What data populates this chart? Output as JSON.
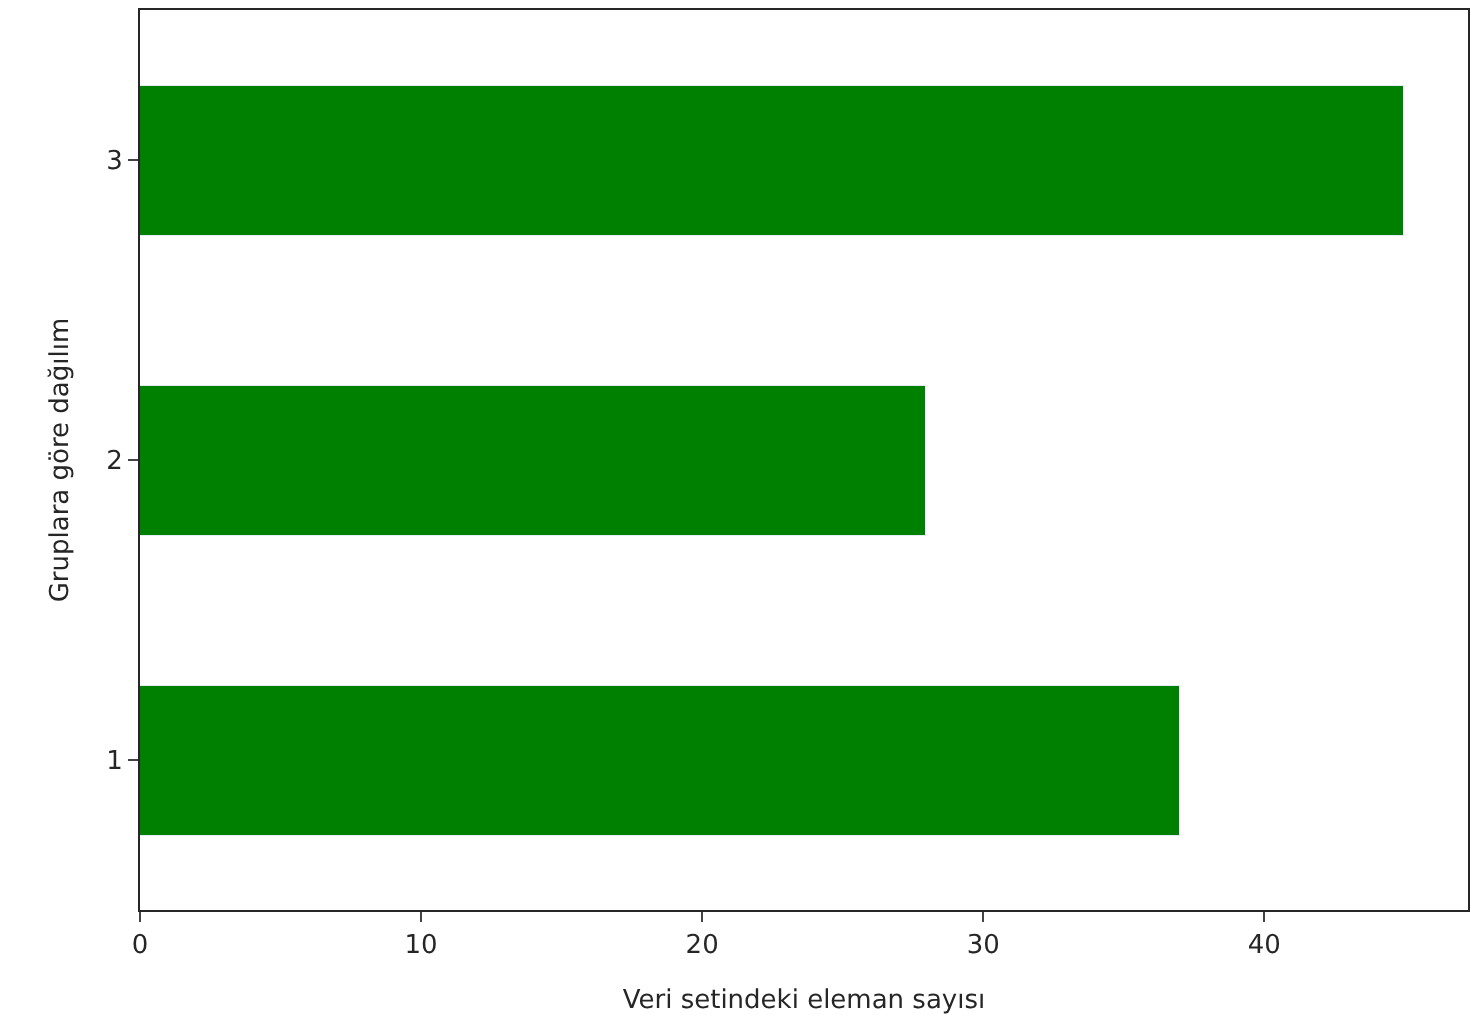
{
  "chart_data": {
    "type": "bar",
    "orientation": "horizontal",
    "categories": [
      "3",
      "2",
      "1"
    ],
    "values": [
      45,
      28,
      37
    ],
    "color": "#008000",
    "xlabel": "Veri setindeki eleman sayısı",
    "ylabel": "Gruplara göre dağılım",
    "xlim": [
      0,
      47.25
    ],
    "xticks": [
      0,
      10,
      20,
      30,
      40
    ],
    "legend": false
  }
}
